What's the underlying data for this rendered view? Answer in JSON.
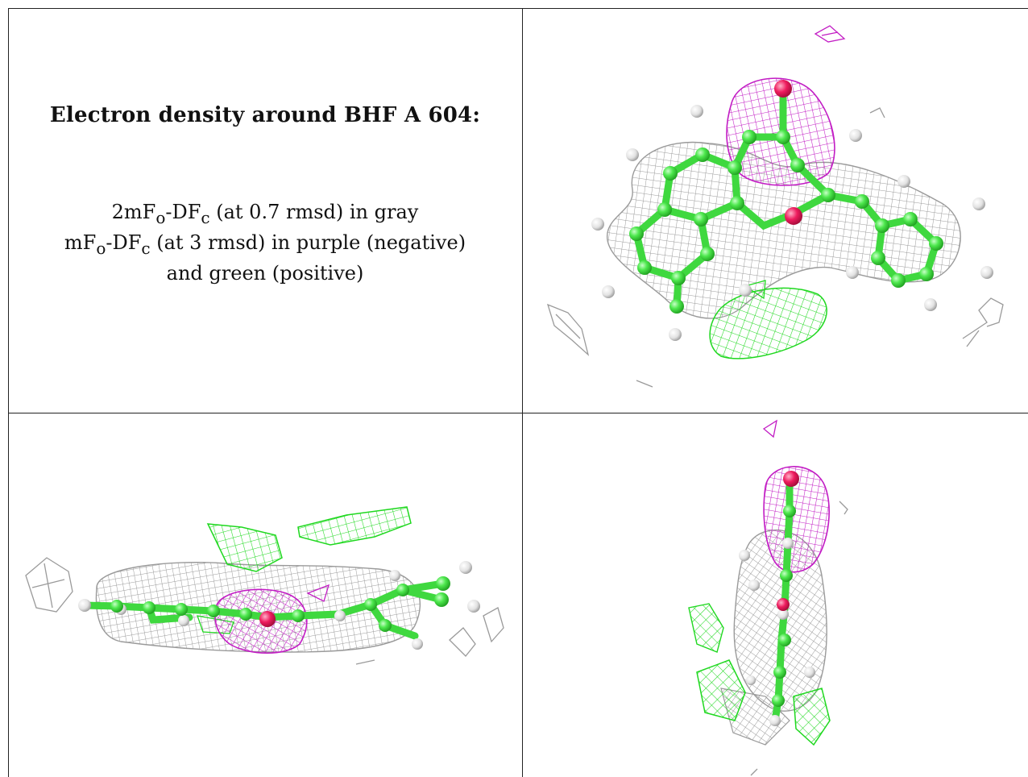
{
  "title": "Electron density around BHF A 604:",
  "legend": {
    "line1": {
      "main": "2mF",
      "sub1": "o",
      "mid": "-DF",
      "sub2": "c",
      "rest": " (at 0.7 rmsd) in gray"
    },
    "line2": {
      "main": "mF",
      "sub1": "o",
      "mid": "-DF",
      "sub2": "c",
      "rest": " (at 3 rmsd) in purple (negative)"
    },
    "line3": "and green (positive)"
  },
  "colors": {
    "map_2fofc": "#a6a6a6",
    "map_negative": "#c21cc4",
    "map_positive": "#22e022",
    "carbon": "#4ee84e",
    "hydrogen": "#e8e8e8",
    "oxygen": "#ee1c5e"
  },
  "panels": [
    {
      "id": "top-right",
      "view": "face-on"
    },
    {
      "id": "bottom-left",
      "view": "edge-on"
    },
    {
      "id": "bottom-right",
      "view": "end-on"
    }
  ]
}
